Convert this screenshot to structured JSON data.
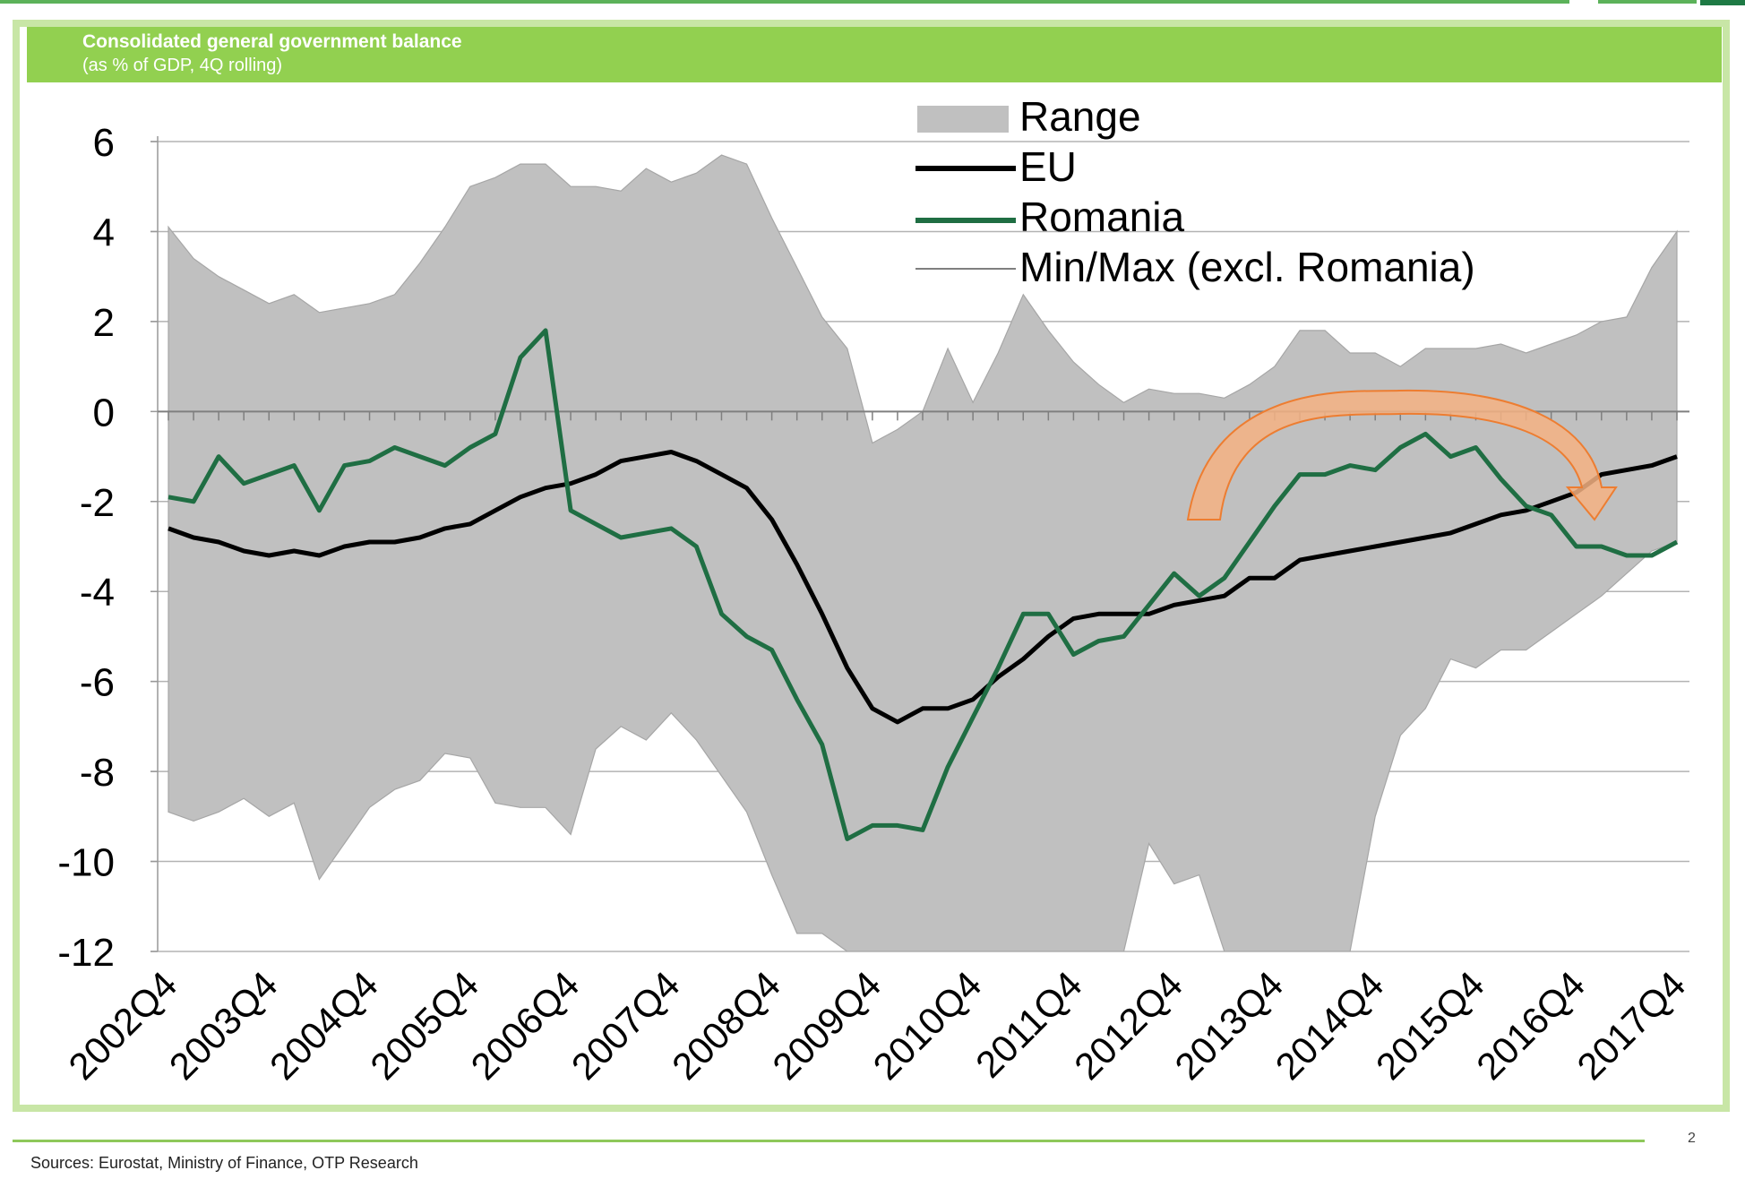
{
  "header": {
    "title": "Consolidated general government balance",
    "subtitle": "(as % of GDP, 4Q rolling)"
  },
  "footer": {
    "sources": "Sources: Eurostat, Ministry of Finance, OTP Research",
    "page_mark": "2"
  },
  "colors": {
    "header_band": "#92d050",
    "range_fill": "#c0c0c0",
    "eu_line": "#000000",
    "romania_line": "#1f6e43",
    "arrow_fill": "#f4b183",
    "arrow_stroke": "#ed7d31",
    "gridline": "#b3b3b3"
  },
  "chart_data": {
    "type": "line",
    "title": "Consolidated general government balance",
    "subtitle": "(as % of GDP, 4Q rolling)",
    "ylim": [
      -12,
      6
    ],
    "yticks": [
      "6",
      "4",
      "2",
      "0",
      "-2",
      "-4",
      "-6",
      "-8",
      "-10",
      "-12"
    ],
    "grid": true,
    "legend_position": "top-right",
    "legend": [
      "Range",
      "EU",
      "Romania",
      "Min/Max (excl. Romania)"
    ],
    "x_tick_labels": [
      "2002Q4",
      "2003Q4",
      "2004Q4",
      "2005Q4",
      "2006Q4",
      "2007Q4",
      "2008Q4",
      "2009Q4",
      "2010Q4",
      "2011Q4",
      "2012Q4",
      "2013Q4",
      "2014Q4",
      "2015Q4",
      "2016Q4",
      "2017Q4"
    ],
    "annotation": "curved-arrow-2013Q4-to-2017Q2",
    "series": [
      {
        "name": "Range",
        "kind": "band",
        "max": [
          4.1,
          3.4,
          3.0,
          2.7,
          2.4,
          2.6,
          2.2,
          2.3,
          2.4,
          2.6,
          3.3,
          4.1,
          5.0,
          5.2,
          5.5,
          5.5,
          5.0,
          5.0,
          4.9,
          5.4,
          5.1,
          5.3,
          5.7,
          5.5,
          4.3,
          3.2,
          2.1,
          1.4,
          -0.7,
          -0.4,
          0.0,
          1.4,
          0.2,
          1.3,
          2.6,
          1.8,
          1.1,
          0.6,
          0.2,
          0.5,
          0.4,
          0.4,
          0.3,
          0.6,
          1.0,
          1.8,
          1.8,
          1.3,
          1.3,
          1.0,
          1.4,
          1.4,
          1.4,
          1.5,
          1.3,
          1.5,
          1.7,
          2.0,
          2.1,
          3.2,
          4.0
        ],
        "min": [
          -8.9,
          -9.1,
          -8.9,
          -8.6,
          -9.0,
          -8.7,
          -10.4,
          -9.6,
          -8.8,
          -8.4,
          -8.2,
          -7.6,
          -7.7,
          -8.7,
          -8.8,
          -8.8,
          -9.4,
          -7.5,
          -7.0,
          -7.3,
          -6.7,
          -7.3,
          -8.1,
          -8.9,
          -10.3,
          -11.6,
          -11.6,
          -12,
          -12,
          -12,
          -12,
          -12,
          -12,
          -12,
          -12,
          -12,
          -12,
          -12,
          -12,
          -9.6,
          -10.5,
          -10.3,
          -12,
          -12,
          -12,
          -12,
          -12,
          -12,
          -9.0,
          -7.2,
          -6.6,
          -5.5,
          -5.7,
          -5.3,
          -5.3,
          -4.9,
          -4.5,
          -4.1,
          -3.6,
          -3.1,
          -2.9
        ]
      },
      {
        "name": "EU",
        "values": [
          -2.6,
          -2.8,
          -2.9,
          -3.1,
          -3.2,
          -3.1,
          -3.2,
          -3.0,
          -2.9,
          -2.9,
          -2.8,
          -2.6,
          -2.5,
          -2.2,
          -1.9,
          -1.7,
          -1.6,
          -1.4,
          -1.1,
          -1.0,
          -0.9,
          -1.1,
          -1.4,
          -1.7,
          -2.4,
          -3.4,
          -4.5,
          -5.7,
          -6.6,
          -6.9,
          -6.6,
          -6.6,
          -6.4,
          -5.9,
          -5.5,
          -5.0,
          -4.6,
          -4.5,
          -4.5,
          -4.5,
          -4.3,
          -4.2,
          -4.1,
          -3.7,
          -3.7,
          -3.3,
          -3.2,
          -3.1,
          -3.0,
          -2.9,
          -2.8,
          -2.7,
          -2.5,
          -2.3,
          -2.2,
          -2.0,
          -1.8,
          -1.4,
          -1.3,
          -1.2,
          -1.0
        ]
      },
      {
        "name": "Romania",
        "values": [
          -1.9,
          -2.0,
          -1.0,
          -1.6,
          -1.4,
          -1.2,
          -2.2,
          -1.2,
          -1.1,
          -0.8,
          -1.0,
          -1.2,
          -0.8,
          -0.5,
          1.2,
          1.8,
          -2.2,
          -2.5,
          -2.8,
          -2.7,
          -2.6,
          -3.0,
          -4.5,
          -5.0,
          -5.3,
          -6.4,
          -7.4,
          -9.5,
          -9.2,
          -9.2,
          -9.3,
          -7.9,
          -6.8,
          -5.7,
          -4.5,
          -4.5,
          -5.4,
          -5.1,
          -5.0,
          -4.3,
          -3.6,
          -4.1,
          -3.7,
          -2.9,
          -2.1,
          -1.4,
          -1.4,
          -1.2,
          -1.3,
          -0.8,
          -0.5,
          -1.0,
          -0.8,
          -1.5,
          -2.1,
          -2.3,
          -3.0,
          -3.0,
          -3.2,
          -3.2,
          -2.9
        ]
      }
    ]
  }
}
